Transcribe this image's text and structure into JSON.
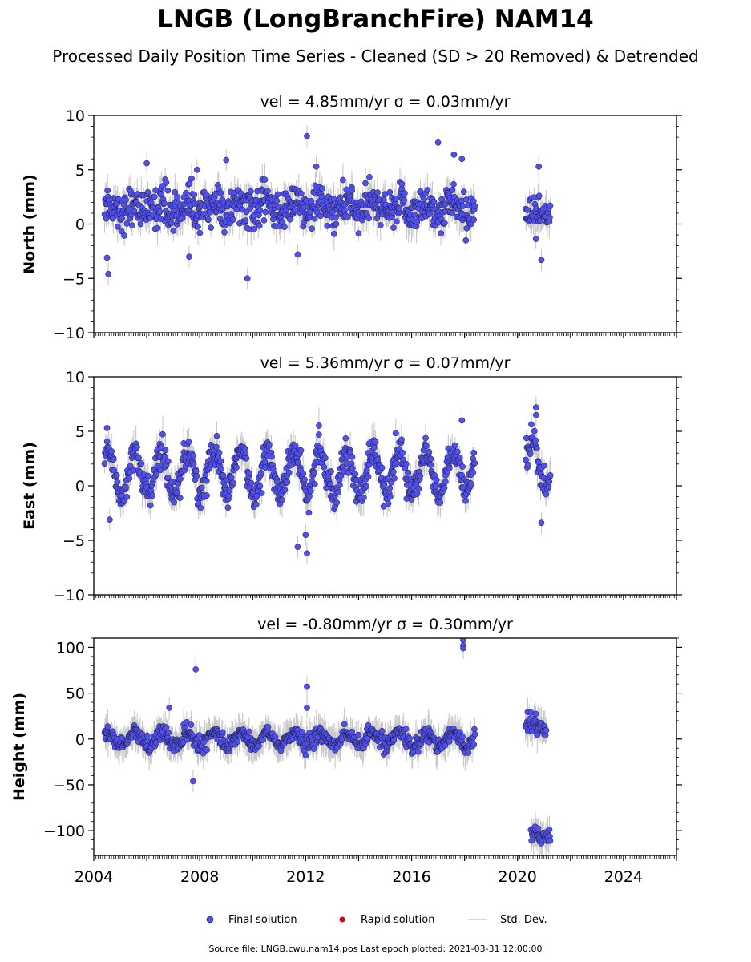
{
  "header": {
    "title": "LNGB (LongBranchFire) NAM14",
    "subtitle": "Processed Daily Position Time Series - Cleaned (SD > 20 Removed) & Detrended"
  },
  "legend": {
    "final_label": "Final solution",
    "rapid_label": "Rapid solution",
    "sd_label": "Std. Dev.",
    "final_color": "#4f4ff5",
    "rapid_color": "#e00000",
    "sd_color": "#c8c8c8"
  },
  "footer": {
    "source": "Source file: LNGB.cwu.nam14.pos  Last epoch plotted: 2021-03-31 12:00:00"
  },
  "chart_data": [
    {
      "type": "scatter",
      "title": "vel = 4.85mm/yr   σ = 0.03mm/yr",
      "ylabel": "North (mm)",
      "xlim": [
        2004,
        2026
      ],
      "ylim": [
        -10,
        10
      ],
      "yticks": [
        -10,
        -5,
        0,
        5,
        10
      ],
      "ytick_labels": [
        "−10",
        "−5",
        "0",
        "5",
        "10"
      ],
      "xticks": [
        2004,
        2008,
        2012,
        2016,
        2020,
        2024
      ],
      "xtick_labels": [],
      "segments": [
        {
          "x": [
            2004.4,
            2018.4
          ],
          "center": 1.5,
          "spread": 1.5,
          "amp": 0.5
        },
        {
          "x": [
            2020.3,
            2021.25
          ],
          "center": 0.8,
          "spread": 1.5,
          "amp": 0.5
        }
      ],
      "outliers": [
        {
          "x": 2004.55,
          "y": -4.6
        },
        {
          "x": 2004.5,
          "y": -3.1
        },
        {
          "x": 2006.0,
          "y": 5.6
        },
        {
          "x": 2007.9,
          "y": 5.0
        },
        {
          "x": 2009.0,
          "y": 5.9
        },
        {
          "x": 2009.8,
          "y": -5.0
        },
        {
          "x": 2012.05,
          "y": 8.1
        },
        {
          "x": 2012.4,
          "y": 5.3
        },
        {
          "x": 2011.7,
          "y": -2.8
        },
        {
          "x": 2017.0,
          "y": 7.5
        },
        {
          "x": 2017.6,
          "y": 6.4
        },
        {
          "x": 2017.9,
          "y": 6.0
        },
        {
          "x": 2020.8,
          "y": 5.3
        },
        {
          "x": 2020.9,
          "y": -3.3
        },
        {
          "x": 2007.6,
          "y": -3.0
        }
      ]
    },
    {
      "type": "scatter",
      "title": "vel = 5.36mm/yr   σ = 0.07mm/yr",
      "ylabel": "East (mm)",
      "xlim": [
        2004,
        2026
      ],
      "ylim": [
        -10,
        10
      ],
      "yticks": [
        -10,
        -5,
        0,
        5,
        10
      ],
      "ytick_labels": [
        "−10",
        "−5",
        "0",
        "5",
        "10"
      ],
      "xticks": [
        2004,
        2008,
        2012,
        2016,
        2020,
        2024
      ],
      "xtick_labels": [],
      "segments": [
        {
          "x": [
            2004.4,
            2018.4
          ],
          "center": 1.2,
          "spread": 1.2,
          "amp": 2.0
        },
        {
          "x": [
            2020.3,
            2021.25
          ],
          "center": 2.0,
          "spread": 1.3,
          "amp": 2.0
        }
      ],
      "outliers": [
        {
          "x": 2004.5,
          "y": 5.3
        },
        {
          "x": 2004.6,
          "y": -3.1
        },
        {
          "x": 2011.7,
          "y": -5.6
        },
        {
          "x": 2012.05,
          "y": -6.2
        },
        {
          "x": 2012.0,
          "y": -4.5
        },
        {
          "x": 2012.5,
          "y": 4.7
        },
        {
          "x": 2020.7,
          "y": 7.2
        },
        {
          "x": 2020.7,
          "y": 6.5
        },
        {
          "x": 2020.9,
          "y": -3.4
        },
        {
          "x": 2017.9,
          "y": 6.0
        }
      ]
    },
    {
      "type": "scatter",
      "title": "vel = -0.80mm/yr   σ = 0.30mm/yr",
      "ylabel": "Height (mm)",
      "xlim": [
        2004,
        2026
      ],
      "ylim": [
        -127,
        110
      ],
      "yticks": [
        -100,
        -50,
        0,
        50,
        100
      ],
      "ytick_labels": [
        "−100",
        "−50",
        "0",
        "50",
        "100"
      ],
      "xticks": [
        2004,
        2008,
        2012,
        2016,
        2020,
        2024
      ],
      "xtick_labels": [
        "2004",
        "2008",
        "2012",
        "2016",
        "2020",
        "2024"
      ],
      "segments": [
        {
          "x": [
            2004.4,
            2018.4
          ],
          "center": 0,
          "spread": 7,
          "amp": 7
        },
        {
          "x": [
            2020.3,
            2021.1
          ],
          "center": 15,
          "spread": 8,
          "amp": 5
        },
        {
          "x": [
            2020.5,
            2021.25
          ],
          "center": -105,
          "spread": 6,
          "amp": 3
        }
      ],
      "outliers": [
        {
          "x": 2007.85,
          "y": 76
        },
        {
          "x": 2007.75,
          "y": -46
        },
        {
          "x": 2006.85,
          "y": 34
        },
        {
          "x": 2012.05,
          "y": 57
        },
        {
          "x": 2012.05,
          "y": 34
        },
        {
          "x": 2017.95,
          "y": 108
        },
        {
          "x": 2017.95,
          "y": 102
        },
        {
          "x": 2017.95,
          "y": 99
        }
      ]
    }
  ]
}
